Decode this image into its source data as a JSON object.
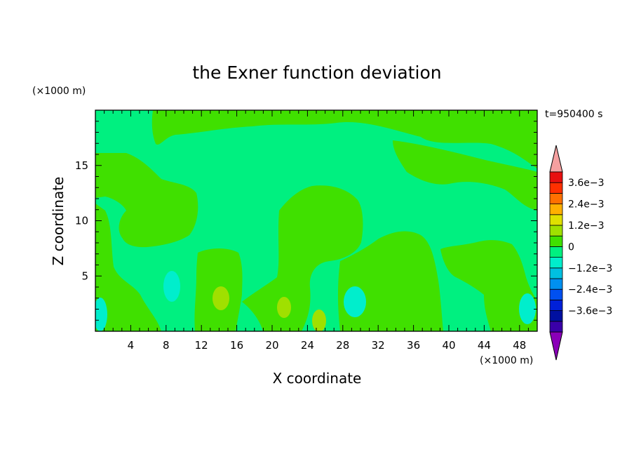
{
  "chart_data": {
    "type": "heatmap",
    "title": "the Exner function deviation",
    "xlabel": "X coordinate",
    "ylabel": "Z coordinate",
    "x_unit": "(×1000 m)",
    "y_unit": "(×1000 m)",
    "time_label": "t=950400 s",
    "xlim": [
      0,
      50
    ],
    "ylim": [
      0,
      20
    ],
    "x_ticks": [
      "4",
      "8",
      "12",
      "16",
      "20",
      "24",
      "28",
      "32",
      "36",
      "40",
      "44",
      "48"
    ],
    "y_ticks": [
      "5",
      "10",
      "15"
    ],
    "colorbar": {
      "labels": [
        "3.6e−3",
        "2.4e−3",
        "1.2e−3",
        "0",
        "−1.2e−3",
        "−2.4e−3",
        "−3.6e−3"
      ],
      "levels": [
        -0.0042,
        -0.0036,
        -0.003,
        -0.0024,
        -0.0018,
        -0.0012,
        -0.0006,
        0,
        0.0006,
        0.0012,
        0.0018,
        0.0024,
        0.003,
        0.0036,
        0.0042
      ],
      "colors": [
        "#8a00b8",
        "#3a00a8",
        "#0010a0",
        "#0020d8",
        "#0050f0",
        "#0090f0",
        "#00c0e0",
        "#00eecc",
        "#00f080",
        "#40e000",
        "#a0e000",
        "#e0e000",
        "#ffb000",
        "#ff7000",
        "#ff3000",
        "#e81010",
        "#f5a0a0"
      ]
    },
    "field_colors": {
      "near_zero_negative": "#00f080",
      "near_zero_positive": "#40e000",
      "weak_negative": "#00eecc",
      "weak_positive": "#a0e000"
    }
  }
}
